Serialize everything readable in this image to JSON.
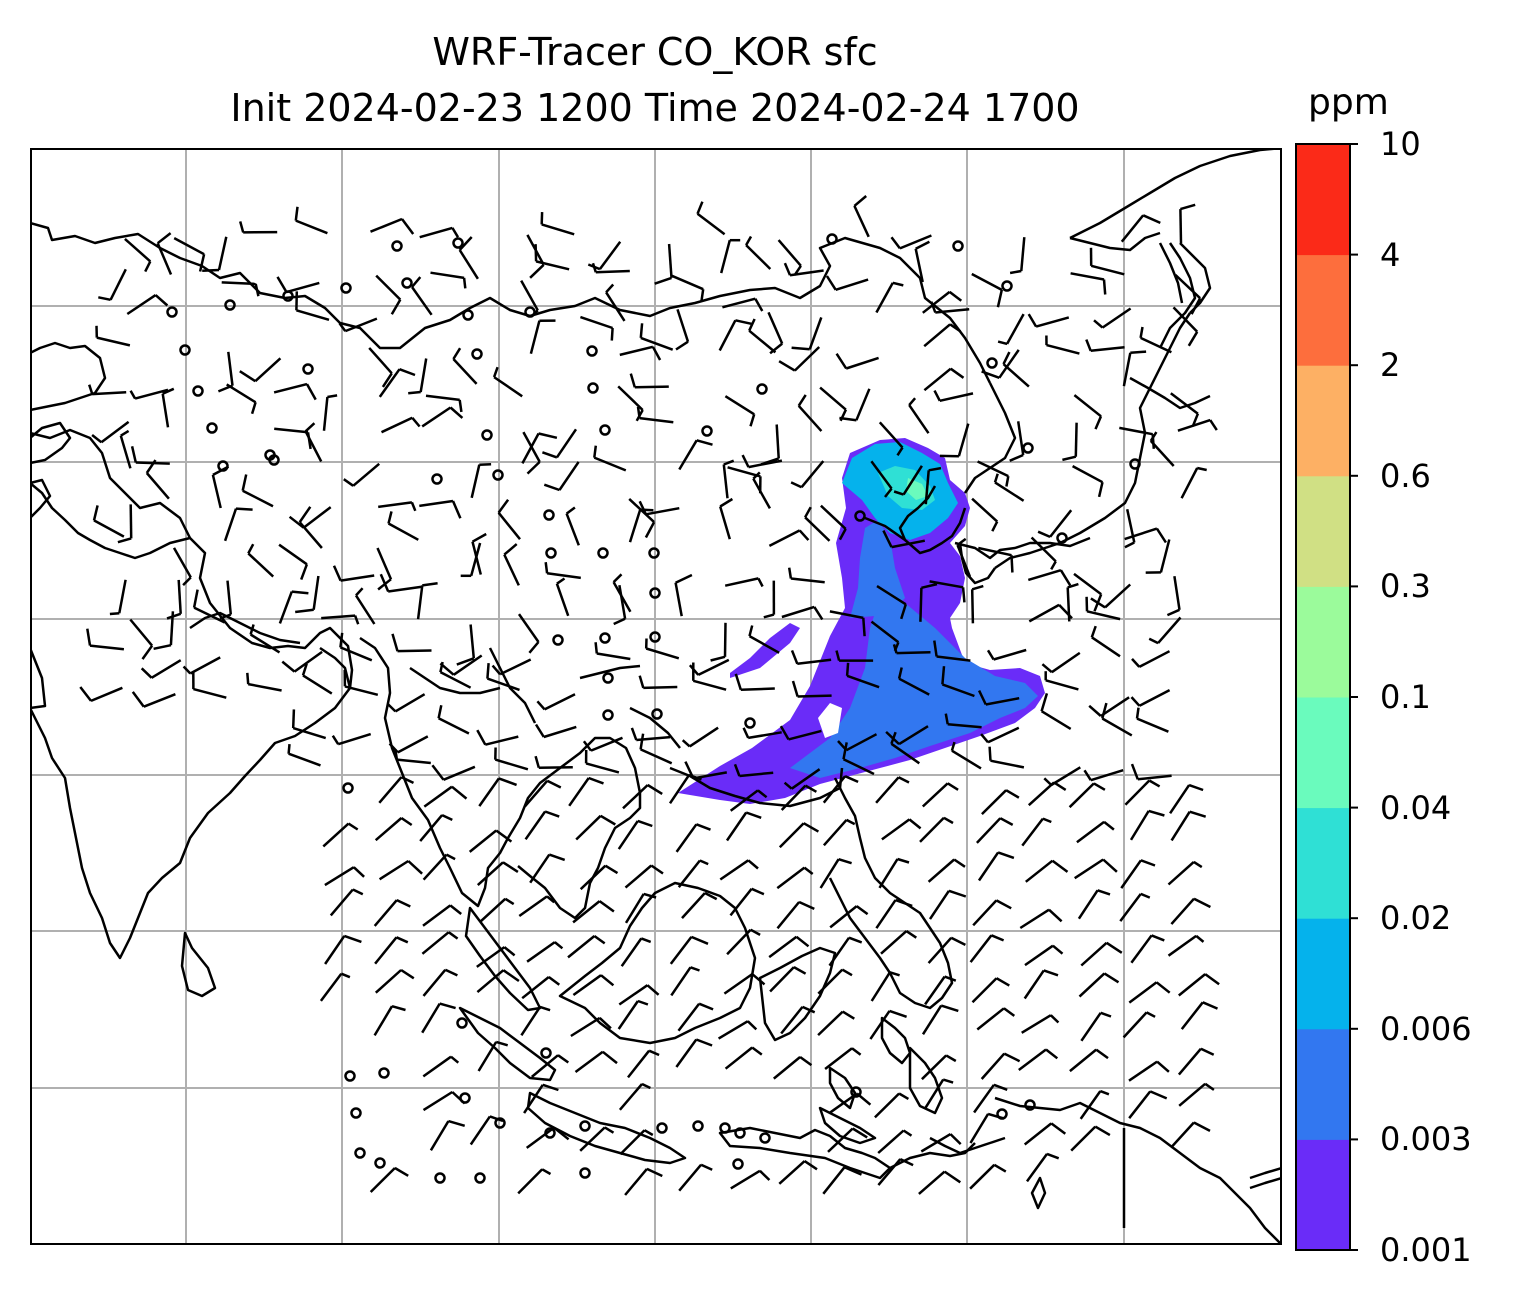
{
  "title": {
    "line1": "WRF-Tracer CO_KOR sfc",
    "line2": "Init 2024-02-23 1200 Time 2024-02-24 1700"
  },
  "colorbar": {
    "unit": "ppm",
    "levels": [
      "0.001",
      "0.003",
      "0.006",
      "0.02",
      "0.04",
      "0.1",
      "0.3",
      "0.6",
      "2",
      "4",
      "10"
    ],
    "colors": [
      "#6a2cf8",
      "#3277f0",
      "#05b2ec",
      "#2fe0d5",
      "#6afbbd",
      "#9bfb9b",
      "#d0e084",
      "#fdb064",
      "#fd6e3d",
      "#fb2a18"
    ]
  },
  "map": {
    "coastline_color": "#000000",
    "grid_color": "#b0b0b0",
    "wind_barb_color": "#000000",
    "plume_primary": "#6a2cf8"
  }
}
